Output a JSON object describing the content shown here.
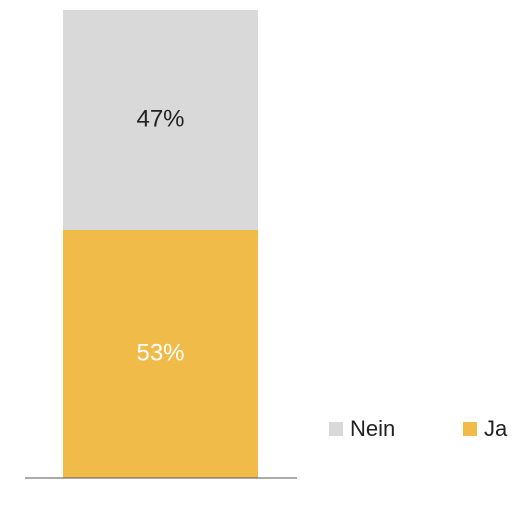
{
  "chart_data": {
    "type": "stacked_bar",
    "categories": [
      null
    ],
    "series": [
      {
        "name": "Ja",
        "color": "#F0BB48",
        "label_color": "#ffffff",
        "values": [
          53
        ],
        "value_labels": [
          "53%"
        ]
      },
      {
        "name": "Nein",
        "color": "#D9D9D9",
        "label_color": "#222222",
        "values": [
          47
        ],
        "value_labels": [
          "47%"
        ]
      }
    ],
    "ylim": [
      0,
      100
    ],
    "legend": "bottom-right"
  }
}
